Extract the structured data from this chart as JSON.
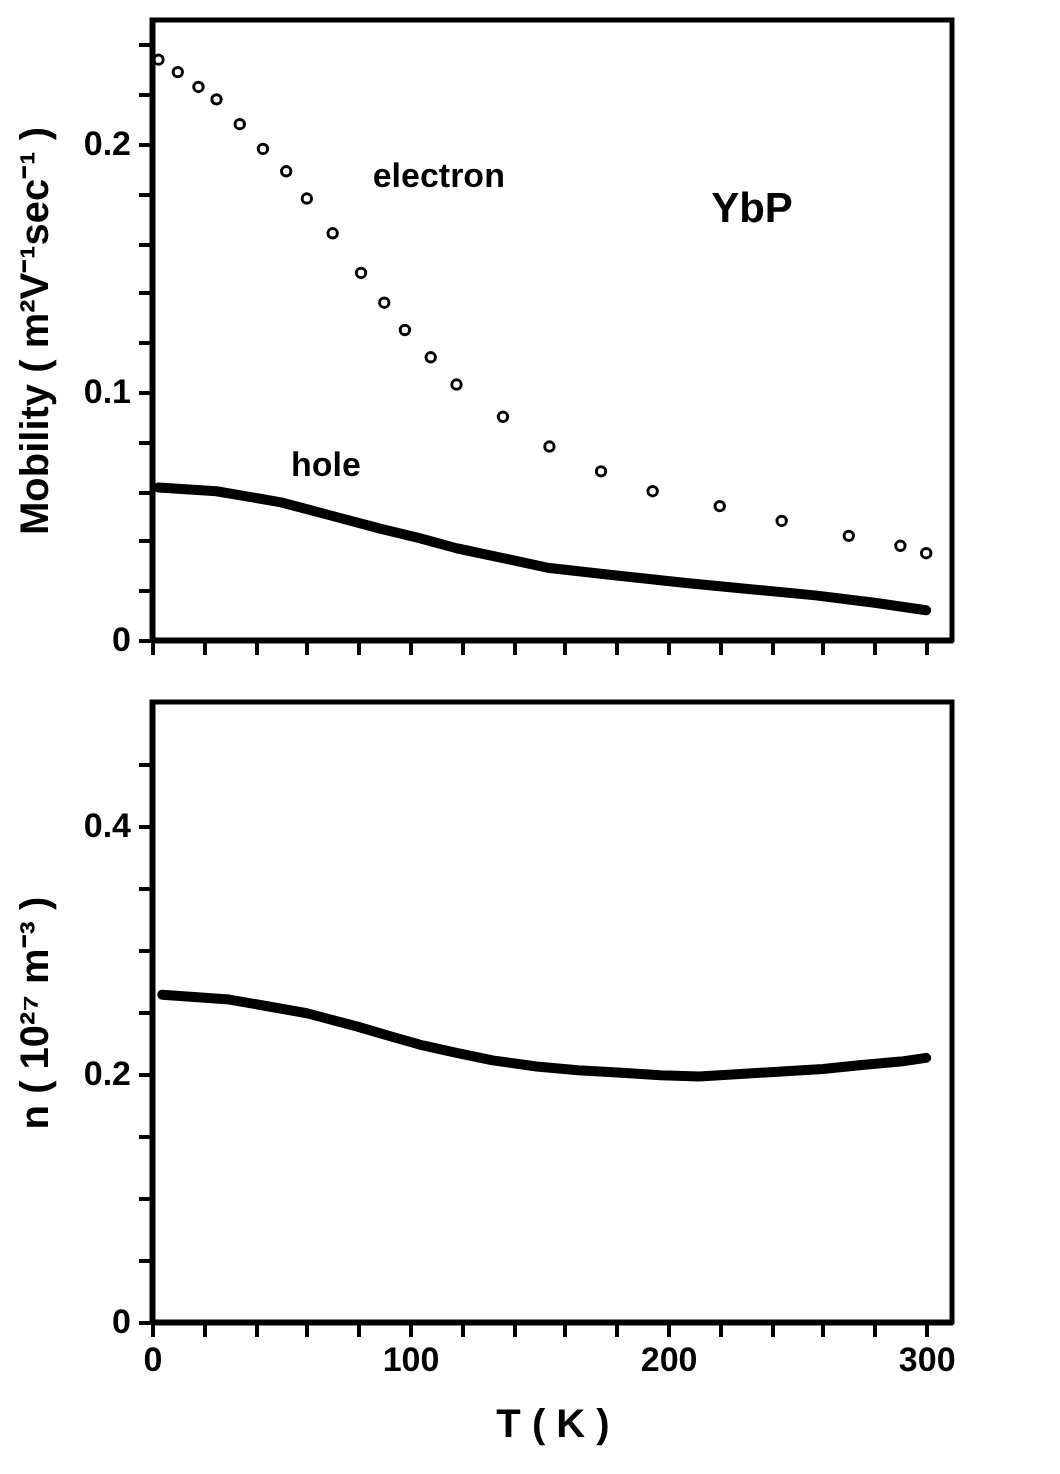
{
  "chart_data": [
    {
      "type": "scatter",
      "ylabel": "Mobility ( m²V⁻¹sec⁻¹ )",
      "annotations": [
        "YbP"
      ],
      "tick_labels": "y",
      "xlim": [
        0,
        310
      ],
      "xticks": [
        0,
        {
          "value": 20,
          "label": null
        },
        {
          "value": 40,
          "label": null
        },
        {
          "value": 60,
          "label": null
        },
        {
          "value": 80,
          "label": null
        },
        {
          "value": 100,
          "label": null
        },
        {
          "value": 120,
          "label": null
        },
        {
          "value": 140,
          "label": null
        },
        {
          "value": 160,
          "label": null
        },
        {
          "value": 180,
          "label": null
        },
        {
          "value": 200,
          "label": null
        },
        {
          "value": 220,
          "label": null
        },
        {
          "value": 240,
          "label": null
        },
        {
          "value": 260,
          "label": null
        },
        {
          "value": 280,
          "label": null
        },
        {
          "value": 300,
          "label": null
        }
      ],
      "ylim": [
        0,
        0.25
      ],
      "yticks": [
        0,
        {
          "value": 0.02,
          "label": null
        },
        {
          "value": 0.04,
          "label": null
        },
        {
          "value": 0.06,
          "label": null
        },
        {
          "value": 0.08,
          "label": null
        },
        0.1,
        {
          "value": 0.12,
          "label": null
        },
        {
          "value": 0.14,
          "label": null
        },
        {
          "value": 0.16,
          "label": null
        },
        {
          "value": 0.18,
          "label": null
        },
        0.2,
        {
          "value": 0.22,
          "label": null
        },
        {
          "value": 0.24,
          "label": null
        }
      ],
      "series": [
        {
          "name": "electron",
          "marker": "circle",
          "color": "#000000",
          "x": [
            2.5,
            10,
            18,
            25,
            34,
            43,
            52,
            60,
            70,
            81,
            90,
            98,
            108,
            118,
            136,
            154,
            174,
            194,
            220,
            244,
            270,
            290,
            300
          ],
          "values": [
            0.234,
            0.229,
            0.223,
            0.218,
            0.208,
            0.198,
            0.189,
            0.178,
            0.164,
            0.148,
            0.136,
            0.125,
            0.114,
            0.103,
            0.09,
            0.078,
            0.068,
            0.06,
            0.054,
            0.048,
            0.042,
            0.038,
            0.035
          ]
        },
        {
          "name": "hole",
          "type": "line",
          "color": "#000000",
          "x": [
            2.5,
            25,
            50,
            70,
            88,
            104,
            118,
            136,
            154,
            180,
            207,
            232,
            257,
            280,
            300
          ],
          "values": [
            0.0615,
            0.06,
            0.0555,
            0.05,
            0.045,
            0.041,
            0.037,
            0.033,
            0.029,
            0.026,
            0.023,
            0.0205,
            0.018,
            0.015,
            0.012
          ]
        }
      ]
    },
    {
      "type": "line",
      "xlabel": "T ( K )",
      "ylabel": "n ( 10²⁷ m⁻³ )",
      "xlim": [
        0,
        310
      ],
      "xticks": [
        0,
        {
          "value": 20,
          "label": null
        },
        {
          "value": 40,
          "label": null
        },
        {
          "value": 60,
          "label": null
        },
        {
          "value": 80,
          "label": null
        },
        100,
        {
          "value": 120,
          "label": null
        },
        {
          "value": 140,
          "label": null
        },
        {
          "value": 160,
          "label": null
        },
        {
          "value": 180,
          "label": null
        },
        200,
        {
          "value": 220,
          "label": null
        },
        {
          "value": 240,
          "label": null
        },
        {
          "value": 260,
          "label": null
        },
        {
          "value": 280,
          "label": null
        },
        300
      ],
      "ylim": [
        0,
        0.5
      ],
      "yticks": [
        0,
        {
          "value": 0.05,
          "label": null
        },
        {
          "value": 0.1,
          "label": null
        },
        {
          "value": 0.15,
          "label": null
        },
        0.2,
        {
          "value": 0.25,
          "label": null
        },
        {
          "value": 0.3,
          "label": null
        },
        {
          "value": 0.35,
          "label": null
        },
        0.4,
        {
          "value": 0.45,
          "label": null
        }
      ],
      "series": [
        {
          "color": "#000000",
          "x": [
            4,
            30,
            60,
            80,
            93,
            105,
            118,
            132,
            149,
            165,
            182,
            197,
            212,
            228,
            244,
            260,
            274,
            290,
            300
          ],
          "values": [
            0.264,
            0.26,
            0.249,
            0.238,
            0.23,
            0.223,
            0.217,
            0.211,
            0.206,
            0.203,
            0.201,
            0.199,
            0.198,
            0.2,
            0.202,
            0.204,
            0.207,
            0.21,
            0.213
          ]
        }
      ]
    }
  ]
}
